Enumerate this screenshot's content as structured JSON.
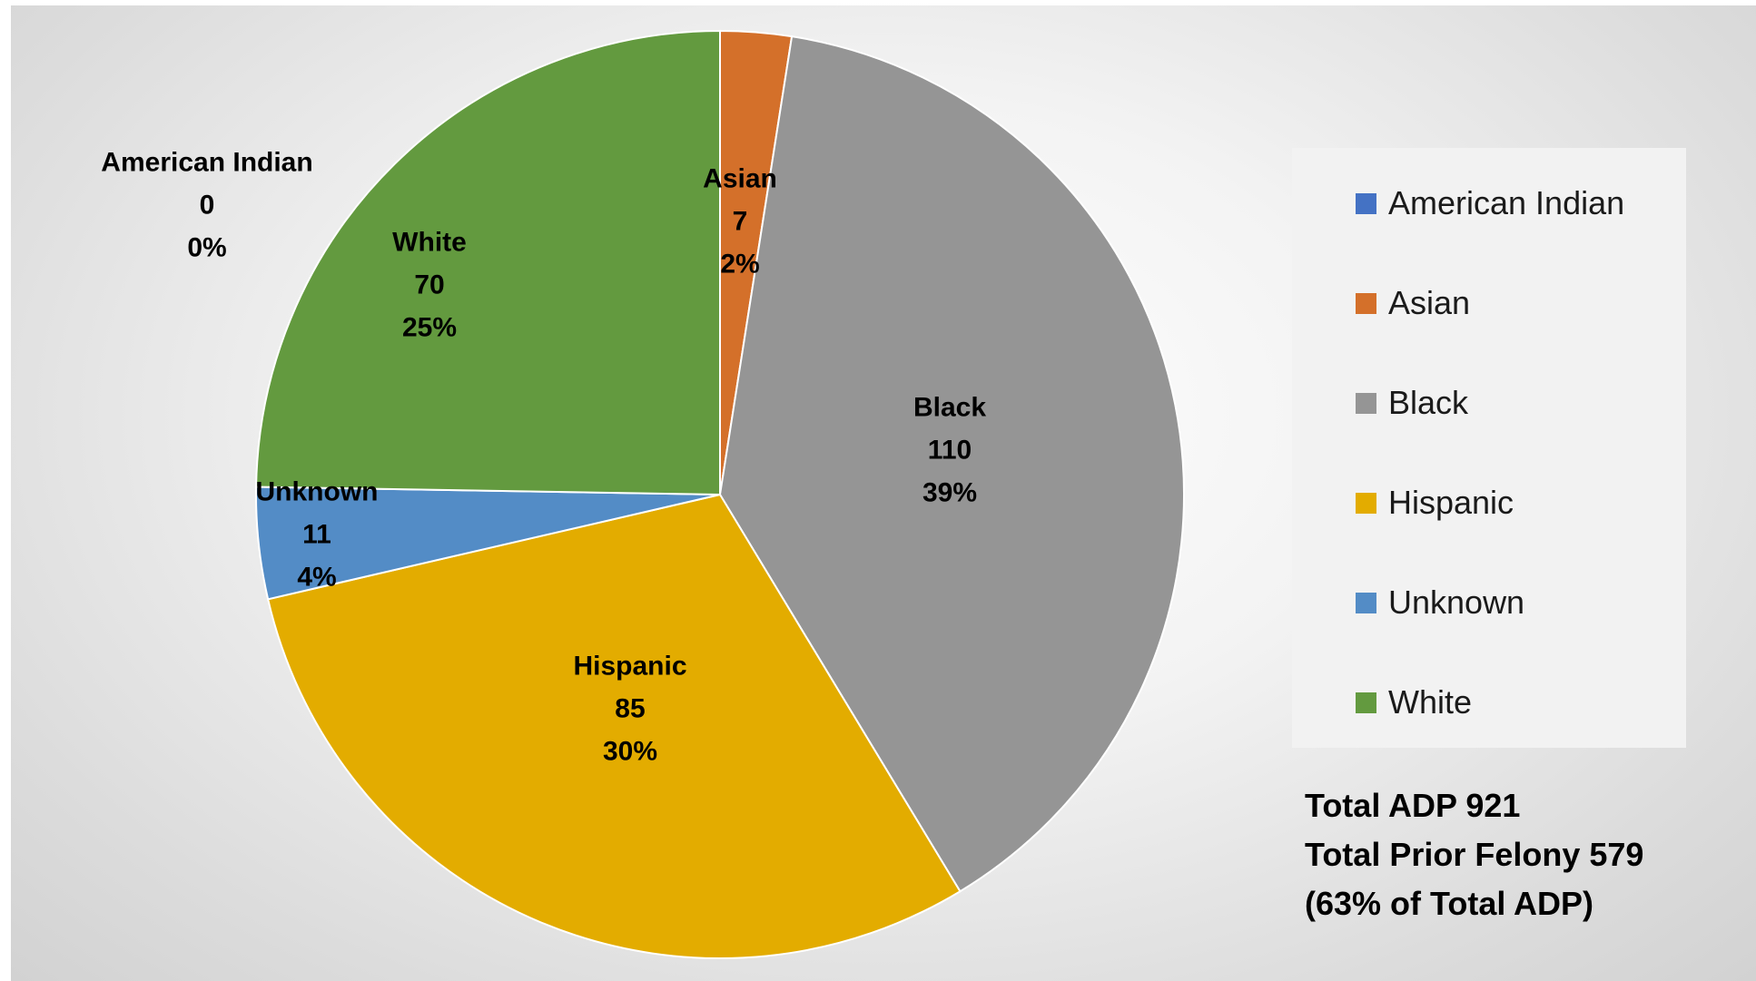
{
  "chart_data": {
    "type": "pie",
    "slices": [
      {
        "name": "American Indian",
        "value": 0,
        "percent": "0%",
        "color": "#4472C4"
      },
      {
        "name": "Asian",
        "value": 7,
        "percent": "2%",
        "color": "#D4702A"
      },
      {
        "name": "Black",
        "value": 110,
        "percent": "39%",
        "color": "#959595"
      },
      {
        "name": "Hispanic",
        "value": 85,
        "percent": "30%",
        "color": "#E3AC00"
      },
      {
        "name": "Unknown",
        "value": 11,
        "percent": "4%",
        "color": "#538CC6"
      },
      {
        "name": "White",
        "value": 70,
        "percent": "25%",
        "color": "#639A3F"
      }
    ],
    "legend_placement": "right"
  },
  "totals": {
    "line1": "Total ADP 921",
    "line2": "Total Prior Felony 579",
    "line3": "(63% of Total ADP)"
  }
}
